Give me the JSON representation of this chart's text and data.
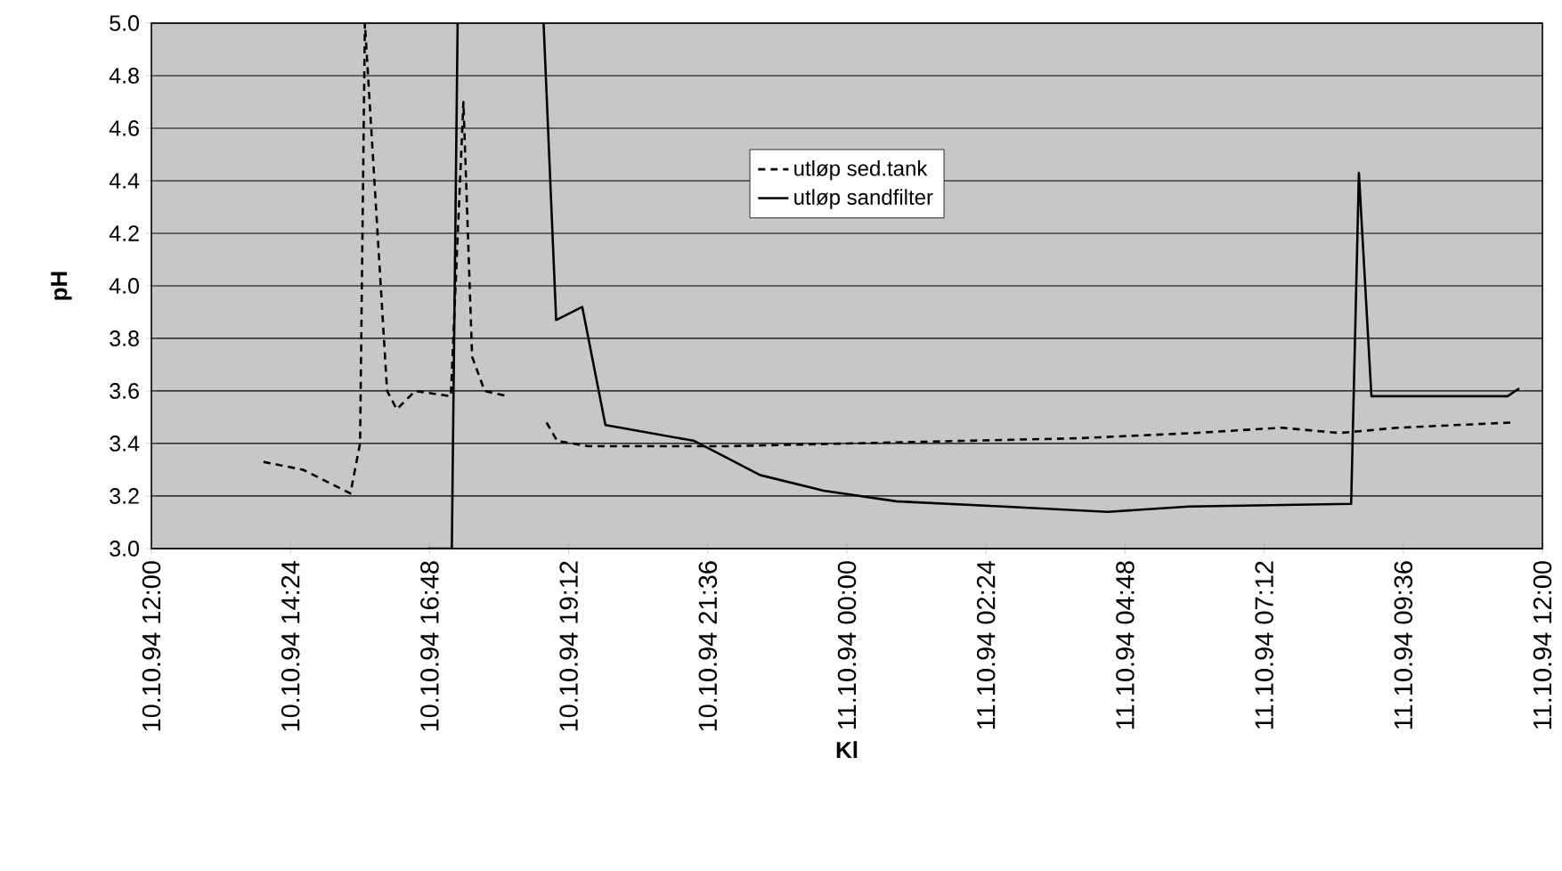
{
  "chart_data": {
    "type": "line",
    "xlabel": "Kl",
    "ylabel": "pH",
    "xlim": [
      "1994-10-10T12:00",
      "1994-10-11T12:00"
    ],
    "xticks": [
      {
        "value": "1994-10-10T12:00",
        "label": "10.10.94 12:00"
      },
      {
        "value": "1994-10-10T14:24",
        "label": "10.10.94 14:24"
      },
      {
        "value": "1994-10-10T16:48",
        "label": "10.10.94 16:48"
      },
      {
        "value": "1994-10-10T19:12",
        "label": "10.10.94 19:12"
      },
      {
        "value": "1994-10-10T21:36",
        "label": "10.10.94 21:36"
      },
      {
        "value": "1994-10-11T00:00",
        "label": "11.10.94 00:00"
      },
      {
        "value": "1994-10-11T02:24",
        "label": "11.10.94 02:24"
      },
      {
        "value": "1994-10-11T04:48",
        "label": "11.10.94 04:48"
      },
      {
        "value": "1994-10-11T07:12",
        "label": "11.10.94 07:12"
      },
      {
        "value": "1994-10-11T09:36",
        "label": "11.10.94 09:36"
      },
      {
        "value": "1994-10-11T12:00",
        "label": "11.10.94 12:00"
      }
    ],
    "ylim": [
      3.0,
      5.0
    ],
    "yticks": [
      {
        "value": 3.0,
        "label": "3.0"
      },
      {
        "value": 3.2,
        "label": "3.2"
      },
      {
        "value": 3.4,
        "label": "3.4"
      },
      {
        "value": 3.6,
        "label": "3.6"
      },
      {
        "value": 3.8,
        "label": "3.8"
      },
      {
        "value": 4.0,
        "label": "4.0"
      },
      {
        "value": 4.2,
        "label": "4.2"
      },
      {
        "value": 4.4,
        "label": "4.4"
      },
      {
        "value": 4.6,
        "label": "4.6"
      },
      {
        "value": 4.8,
        "label": "4.8"
      },
      {
        "value": 5.0,
        "label": "5.0"
      }
    ],
    "grid": "y",
    "legend": "top right",
    "marker": "none",
    "series": [
      {
        "name": "utløp sed.tank",
        "color": "#000000",
        "line_style": "dashed",
        "x": [
          "1994-10-10T13:56",
          "1994-10-10T14:37",
          "1994-10-10T15:26",
          "1994-10-10T15:36",
          "1994-10-10T15:41",
          "1994-10-10T16:04",
          "1994-10-10T16:14",
          "1994-10-10T16:33",
          "1994-10-10T17:10",
          "1994-10-10T17:23",
          "1994-10-10T17:32",
          "1994-10-10T17:45",
          "1994-10-10T18:09",
          "1994-10-10T18:30",
          "1994-10-10T18:49",
          "1994-10-10T19:00",
          "1994-10-10T19:32",
          "1994-10-10T22:00",
          "1994-10-11T00:00",
          "1994-10-11T02:00",
          "1994-10-11T04:00",
          "1994-10-11T06:00",
          "1994-10-11T07:30",
          "1994-10-11T08:30",
          "1994-10-11T09:30",
          "1994-10-11T10:30",
          "1994-10-11T11:30"
        ],
        "values": [
          3.33,
          3.3,
          3.21,
          3.4,
          5.0,
          3.6,
          3.53,
          3.6,
          3.58,
          4.7,
          3.73,
          3.6,
          3.58,
          null,
          3.48,
          3.41,
          3.39,
          3.39,
          3.4,
          3.41,
          3.42,
          3.44,
          3.46,
          3.44,
          3.46,
          3.47,
          3.48
        ]
      },
      {
        "name": "utløp sandfilter",
        "color": "#000000",
        "line_style": "solid",
        "x": [
          "1994-10-10T16:46",
          "1994-10-10T17:11",
          "1994-10-10T17:17",
          "1994-10-10T18:00",
          "1994-10-10T18:46",
          "1994-10-10T18:59",
          "1994-10-10T19:26",
          "1994-10-10T19:50",
          "1994-10-10T21:22",
          "1994-10-10T22:30",
          "1994-10-10T23:36",
          "1994-10-11T00:51",
          "1994-10-11T02:42",
          "1994-10-11T04:30",
          "1994-10-11T05:54",
          "1994-10-11T08:42",
          "1994-10-11T08:50",
          "1994-10-11T09:03",
          "1994-10-11T11:24",
          "1994-10-11T11:36"
        ],
        "values": [
          3.0,
          3.0,
          5.0,
          null,
          5.0,
          3.87,
          3.92,
          3.47,
          3.41,
          3.28,
          3.22,
          3.18,
          3.16,
          3.14,
          3.16,
          3.17,
          4.43,
          3.58,
          3.58,
          3.61
        ]
      }
    ]
  }
}
